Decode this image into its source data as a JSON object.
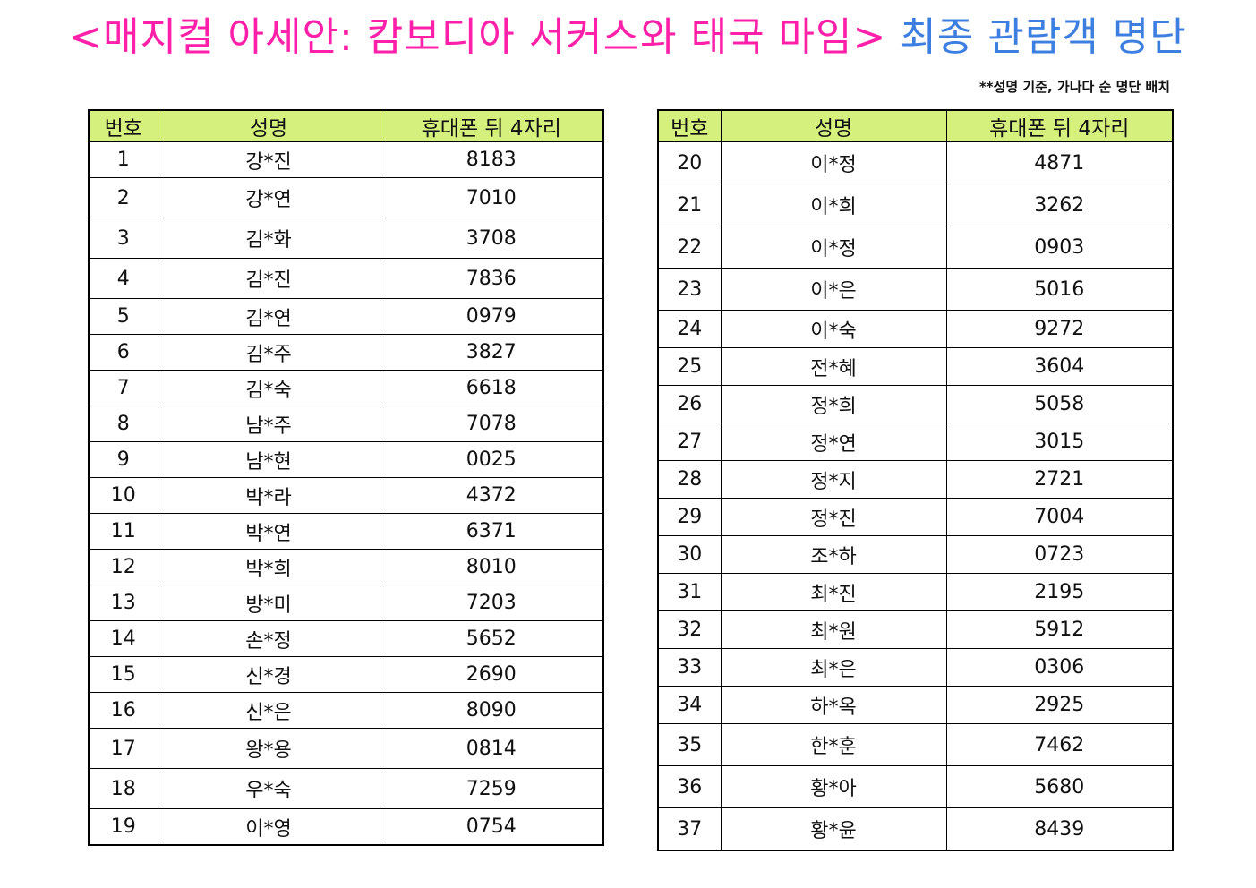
{
  "title": {
    "part1": "<매지컬 아세안: 캄보디아 서커스와 태국 마임>",
    "part2": "최종 관람객 명단"
  },
  "note": "**성명 기준, 가나다 순 명단 배치",
  "headers": {
    "no": "번호",
    "name": "성명",
    "phone": "휴대폰 뒤 4자리"
  },
  "left_rows": [
    {
      "no": "1",
      "name": "강*진",
      "phone": "8183"
    },
    {
      "no": "2",
      "name": "강*연",
      "phone": "7010"
    },
    {
      "no": "3",
      "name": "김*화",
      "phone": "3708"
    },
    {
      "no": "4",
      "name": "김*진",
      "phone": "7836"
    },
    {
      "no": "5",
      "name": "김*연",
      "phone": "0979"
    },
    {
      "no": "6",
      "name": "김*주",
      "phone": "3827"
    },
    {
      "no": "7",
      "name": "김*숙",
      "phone": "6618"
    },
    {
      "no": "8",
      "name": "남*주",
      "phone": "7078"
    },
    {
      "no": "9",
      "name": "남*현",
      "phone": "0025"
    },
    {
      "no": "10",
      "name": "박*라",
      "phone": "4372"
    },
    {
      "no": "11",
      "name": "박*연",
      "phone": "6371"
    },
    {
      "no": "12",
      "name": "박*희",
      "phone": "8010"
    },
    {
      "no": "13",
      "name": "방*미",
      "phone": "7203"
    },
    {
      "no": "14",
      "name": "손*정",
      "phone": "5652"
    },
    {
      "no": "15",
      "name": "신*경",
      "phone": "2690"
    },
    {
      "no": "16",
      "name": "신*은",
      "phone": "8090"
    },
    {
      "no": "17",
      "name": "왕*용",
      "phone": "0814"
    },
    {
      "no": "18",
      "name": "우*숙",
      "phone": "7259"
    },
    {
      "no": "19",
      "name": "이*영",
      "phone": "0754"
    }
  ],
  "right_rows": [
    {
      "no": "20",
      "name": "이*정",
      "phone": "4871"
    },
    {
      "no": "21",
      "name": "이*희",
      "phone": "3262"
    },
    {
      "no": "22",
      "name": "이*정",
      "phone": "0903"
    },
    {
      "no": "23",
      "name": "이*은",
      "phone": "5016"
    },
    {
      "no": "24",
      "name": "이*숙",
      "phone": "9272"
    },
    {
      "no": "25",
      "name": "전*혜",
      "phone": "3604"
    },
    {
      "no": "26",
      "name": "정*희",
      "phone": "5058"
    },
    {
      "no": "27",
      "name": "정*연",
      "phone": "3015"
    },
    {
      "no": "28",
      "name": "정*지",
      "phone": "2721"
    },
    {
      "no": "29",
      "name": "정*진",
      "phone": "7004"
    },
    {
      "no": "30",
      "name": "조*하",
      "phone": "0723"
    },
    {
      "no": "31",
      "name": "최*진",
      "phone": "2195"
    },
    {
      "no": "32",
      "name": "최*원",
      "phone": "5912"
    },
    {
      "no": "33",
      "name": "최*은",
      "phone": "0306"
    },
    {
      "no": "34",
      "name": "하*옥",
      "phone": "2925"
    },
    {
      "no": "35",
      "name": "한*훈",
      "phone": "7462"
    },
    {
      "no": "36",
      "name": "황*아",
      "phone": "5680"
    },
    {
      "no": "37",
      "name": "황*윤",
      "phone": "8439"
    }
  ],
  "colors": {
    "title_pink": "#ff1fa8",
    "title_blue": "#3d7fe0",
    "header_bg": "#d6f07e"
  }
}
